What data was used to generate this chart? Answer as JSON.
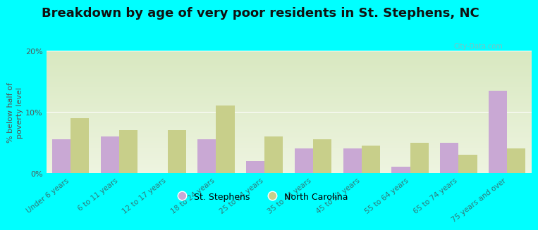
{
  "categories": [
    "Under 6 years",
    "6 to 11 years",
    "12 to 17 years",
    "18 to 24 years",
    "25 to 34 years",
    "35 to 44 years",
    "45 to 54 years",
    "55 to 64 years",
    "65 to 74 years",
    "75 years and over"
  ],
  "st_stephens": [
    5.5,
    6.0,
    0.0,
    5.5,
    2.0,
    4.0,
    4.0,
    1.0,
    5.0,
    13.5
  ],
  "north_carolina": [
    9.0,
    7.0,
    7.0,
    11.0,
    6.0,
    5.5,
    4.5,
    5.0,
    3.0,
    4.0
  ],
  "st_stephens_color": "#c9a8d4",
  "north_carolina_color": "#c8cf8a",
  "title": "Breakdown by age of very poor residents in St. Stephens, NC",
  "ylabel": "% below half of\npoverty level",
  "ylim": [
    0,
    20
  ],
  "yticks": [
    0,
    10,
    20
  ],
  "ytick_labels": [
    "0%",
    "10%",
    "20%"
  ],
  "background_color": "#00ffff",
  "plot_bg_top_color": "#d8e8c0",
  "plot_bg_bottom_color": "#eef4e0",
  "bar_width": 0.38,
  "title_fontsize": 13,
  "axis_label_fontsize": 8,
  "tick_label_fontsize": 7.5,
  "legend_label_stephens": "St. Stephens",
  "legend_label_nc": "North Carolina",
  "watermark_text": "City-Data.com",
  "xtick_color": "#337777"
}
